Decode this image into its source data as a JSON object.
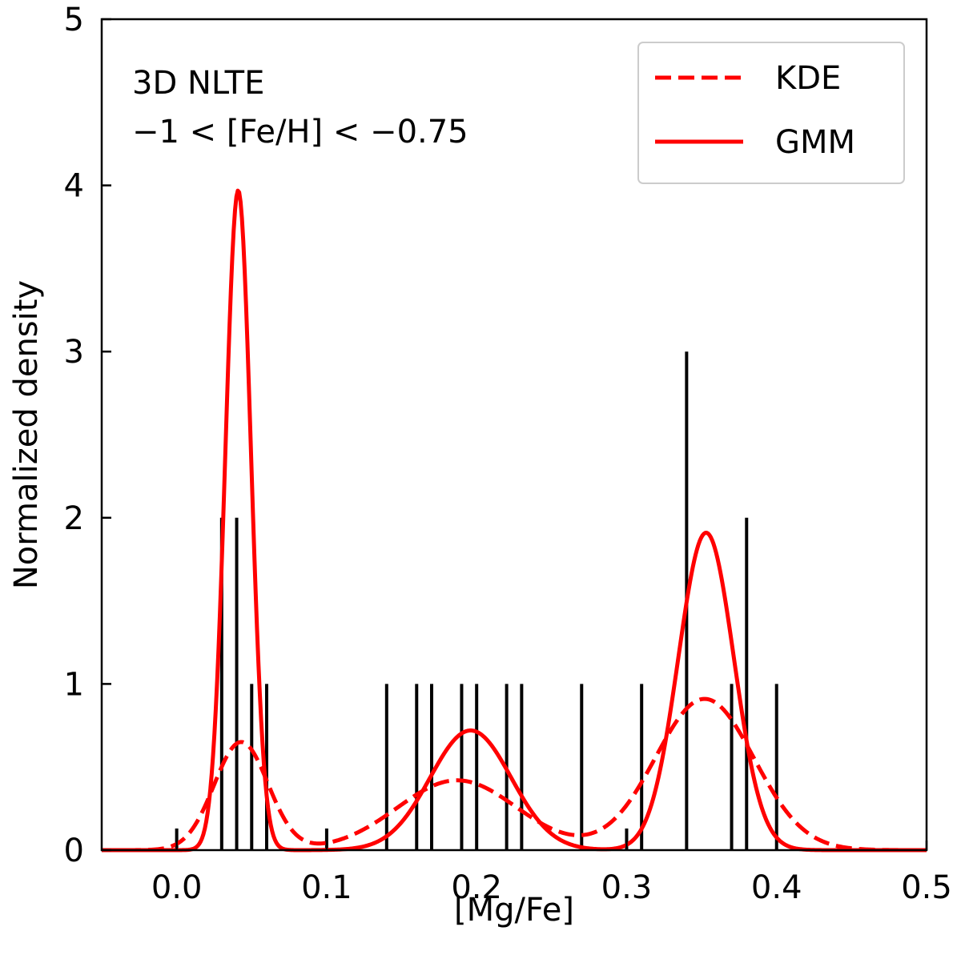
{
  "chart_data": {
    "type": "line",
    "title": "",
    "xlabel": "[Mg/Fe]",
    "ylabel": "Normalized density",
    "xlim": [
      -0.05,
      0.5
    ],
    "ylim": [
      0,
      5
    ],
    "xticks": [
      0.0,
      0.1,
      0.2,
      0.3,
      0.4,
      0.5
    ],
    "xtick_labels": [
      "0.0",
      "0.1",
      "0.2",
      "0.3",
      "0.4",
      "0.5"
    ],
    "yticks": [
      0,
      1,
      2,
      3,
      4,
      5
    ],
    "ytick_labels": [
      "0",
      "1",
      "2",
      "3",
      "4",
      "5"
    ],
    "annotation_lines": [
      "3D NLTE",
      "−1 < [Fe/H] < −0.75"
    ],
    "legend": {
      "position": "top-right",
      "entries": [
        {
          "label": "KDE",
          "style": "dashed",
          "color": "#ff0000"
        },
        {
          "label": "GMM",
          "style": "solid",
          "color": "#ff0000"
        }
      ]
    },
    "histogram": {
      "color": "#000000",
      "bars": [
        {
          "x": 0.0,
          "height": 0.13
        },
        {
          "x": 0.03,
          "height": 2.0
        },
        {
          "x": 0.04,
          "height": 2.0
        },
        {
          "x": 0.05,
          "height": 1.0
        },
        {
          "x": 0.06,
          "height": 1.0
        },
        {
          "x": 0.1,
          "height": 0.13
        },
        {
          "x": 0.14,
          "height": 1.0
        },
        {
          "x": 0.16,
          "height": 1.0
        },
        {
          "x": 0.17,
          "height": 1.0
        },
        {
          "x": 0.19,
          "height": 1.0
        },
        {
          "x": 0.2,
          "height": 1.0
        },
        {
          "x": 0.22,
          "height": 1.0
        },
        {
          "x": 0.23,
          "height": 1.0
        },
        {
          "x": 0.27,
          "height": 1.0
        },
        {
          "x": 0.3,
          "height": 0.13
        },
        {
          "x": 0.31,
          "height": 1.0
        },
        {
          "x": 0.34,
          "height": 3.0
        },
        {
          "x": 0.37,
          "height": 1.0
        },
        {
          "x": 0.38,
          "height": 2.0
        },
        {
          "x": 0.4,
          "height": 1.0
        }
      ]
    },
    "series": [
      {
        "name": "KDE",
        "color": "#ff0000",
        "style": "dashed",
        "components": [
          {
            "mu": 0.043,
            "sigma": 0.018,
            "peak": 0.65
          },
          {
            "mu": 0.187,
            "sigma": 0.04,
            "peak": 0.42
          },
          {
            "mu": 0.352,
            "sigma": 0.033,
            "peak": 0.91
          }
        ]
      },
      {
        "name": "GMM",
        "color": "#ff0000",
        "style": "solid",
        "components": [
          {
            "mu": 0.041,
            "sigma": 0.0085,
            "peak": 3.97
          },
          {
            "mu": 0.196,
            "sigma": 0.027,
            "peak": 0.72
          },
          {
            "mu": 0.353,
            "sigma": 0.0185,
            "peak": 1.91
          }
        ]
      }
    ]
  }
}
